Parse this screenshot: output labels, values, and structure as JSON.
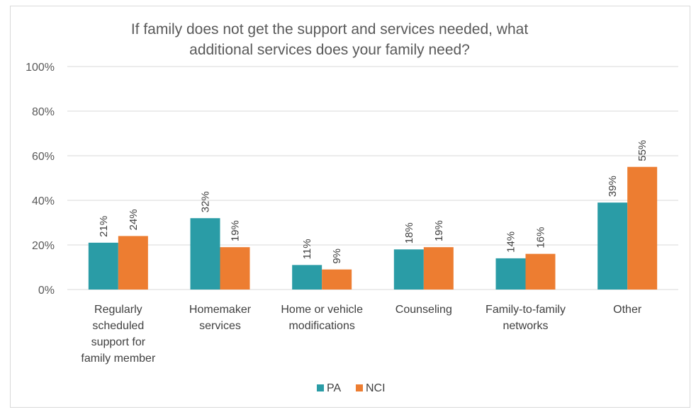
{
  "chart_data": {
    "type": "bar",
    "title_lines": [
      "If family does not get the support and services needed, what",
      "additional services does your family need?"
    ],
    "categories": [
      [
        "Regularly",
        "scheduled",
        "support for",
        "family member"
      ],
      [
        "Homemaker",
        "services"
      ],
      [
        "Home or vehicle",
        "modifications"
      ],
      [
        "Counseling"
      ],
      [
        "Family-to-family",
        "networks"
      ],
      [
        "Other"
      ]
    ],
    "series": [
      {
        "name": "PA",
        "values": [
          21,
          32,
          11,
          18,
          14,
          39
        ],
        "labels": [
          "21%",
          "32%",
          "11%",
          "18%",
          "14%",
          "39%"
        ],
        "color": "#2a9ca6"
      },
      {
        "name": "NCI",
        "values": [
          24,
          19,
          9,
          19,
          16,
          55
        ],
        "labels": [
          "24%",
          "19%",
          "9%",
          "19%",
          "16%",
          "55%"
        ],
        "color": "#ed7d31"
      }
    ],
    "y_ticks": [
      {
        "value": 0,
        "label": "0%"
      },
      {
        "value": 20,
        "label": "20%"
      },
      {
        "value": 40,
        "label": "40%"
      },
      {
        "value": 60,
        "label": "60%"
      },
      {
        "value": 80,
        "label": "80%"
      },
      {
        "value": 100,
        "label": "100%"
      }
    ],
    "ylim": [
      0,
      100
    ],
    "grid": true,
    "gridline_color": "#d9d9d9",
    "legend_position": "bottom"
  }
}
